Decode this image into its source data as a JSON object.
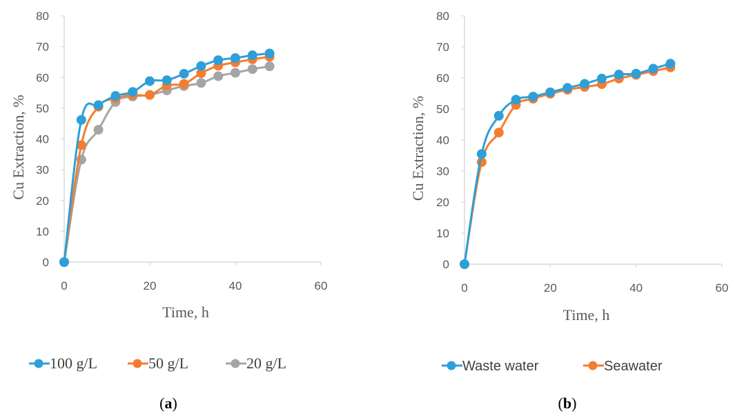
{
  "chart_data": [
    {
      "type": "line",
      "panel_label": "(a)",
      "xlabel": "Time, h",
      "ylabel": "Cu Extraction, %",
      "xlim": [
        0,
        60
      ],
      "ylim": [
        0,
        80
      ],
      "xticks": [
        0,
        20,
        40,
        60
      ],
      "yticks": [
        0,
        10,
        20,
        30,
        40,
        50,
        60,
        70,
        80
      ],
      "grid": false,
      "legend_position": "bottom",
      "legend_font": "serif",
      "x": [
        0,
        4,
        8,
        12,
        16,
        20,
        24,
        28,
        32,
        36,
        40,
        44,
        48
      ],
      "series": [
        {
          "name": "100 g/L",
          "color": "#2E9FD8",
          "values": [
            0,
            46.2,
            51,
            54,
            55.3,
            58.8,
            59.1,
            61.2,
            63.7,
            65.6,
            66.3,
            67.2,
            67.8
          ]
        },
        {
          "name": "50 g/L",
          "color": "#F47D30",
          "values": [
            0,
            38,
            50.5,
            53.2,
            54.3,
            54.3,
            57.4,
            57.9,
            61.4,
            63.8,
            64.9,
            65.9,
            66.7
          ]
        },
        {
          "name": "20 g/L",
          "color": "#A5A5A5",
          "values": [
            0,
            33.3,
            43,
            52,
            53.8,
            54.3,
            55.8,
            57.2,
            58.2,
            60.4,
            61.5,
            62.7,
            63.6
          ]
        }
      ]
    },
    {
      "type": "line",
      "panel_label": "(b)",
      "xlabel": "Time, h",
      "ylabel": "Cu Extraction, %",
      "xlim": [
        0,
        60
      ],
      "ylim": [
        0,
        80
      ],
      "xticks": [
        0,
        20,
        40,
        60
      ],
      "yticks": [
        0,
        10,
        20,
        30,
        40,
        50,
        60,
        70,
        80
      ],
      "grid": false,
      "legend_position": "bottom",
      "legend_font": "sans",
      "x": [
        0,
        4,
        8,
        12,
        16,
        20,
        24,
        28,
        32,
        36,
        40,
        44,
        48
      ],
      "series": [
        {
          "name": "Waste water",
          "color": "#2E9FD8",
          "values": [
            0,
            35.5,
            47.8,
            53,
            54,
            55.4,
            56.8,
            58.1,
            59.8,
            61.1,
            61.4,
            63,
            64.6
          ]
        },
        {
          "name": "Seawater",
          "color": "#F47D30",
          "values": [
            0,
            32.9,
            42.4,
            51.3,
            53.3,
            54.9,
            56.2,
            57.1,
            58,
            59.8,
            61,
            62.2,
            63.4
          ]
        }
      ]
    }
  ]
}
